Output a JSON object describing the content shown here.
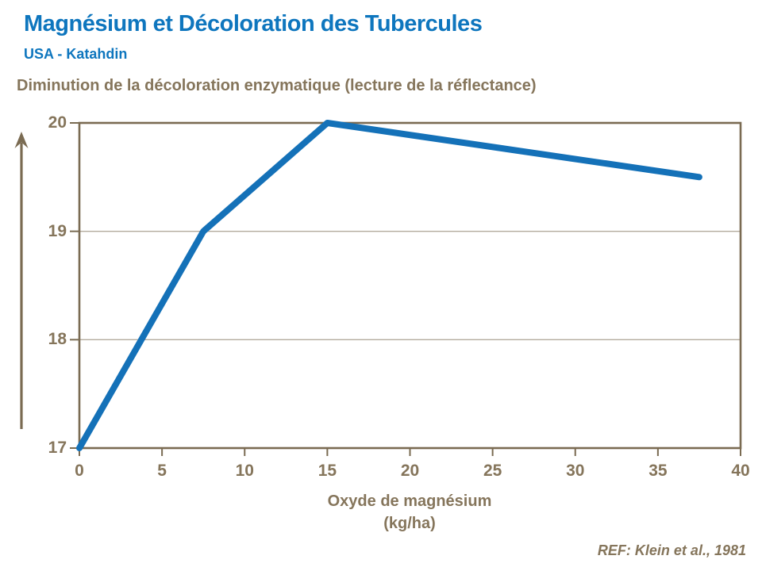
{
  "header": {
    "title": "Magnésium et Décoloration des Tubercules",
    "subtitle": "USA - Katahdin"
  },
  "chart": {
    "heading": "Diminution de la décoloration enzymatique (lecture de la réflectance)",
    "ref": "REF: Klein et al., 1981"
  },
  "chart_data": {
    "type": "line",
    "title": "Diminution de la décoloration enzymatique (lecture de la réflectance)",
    "xlabel_line1": "Oxyde de magnésium",
    "xlabel_line2": "(kg/ha)",
    "ylabel": "",
    "x": [
      0,
      7.5,
      15,
      37.5
    ],
    "y": [
      17,
      19,
      20,
      19.5
    ],
    "x_ticks": [
      0,
      5,
      10,
      15,
      20,
      25,
      30,
      35,
      40
    ],
    "y_ticks": [
      17,
      18,
      19,
      20
    ],
    "xlim": [
      0,
      40
    ],
    "ylim": [
      17,
      20
    ],
    "grid": "horizontal",
    "legend": "none",
    "annotation": "REF: Klein et al., 1981"
  },
  "colors": {
    "title_blue": "#0E76BE",
    "line_blue": "#1471B8",
    "text_brown": "#85755B",
    "axis_brown": "#7A6B52",
    "gridline": "#B3AB9D"
  }
}
